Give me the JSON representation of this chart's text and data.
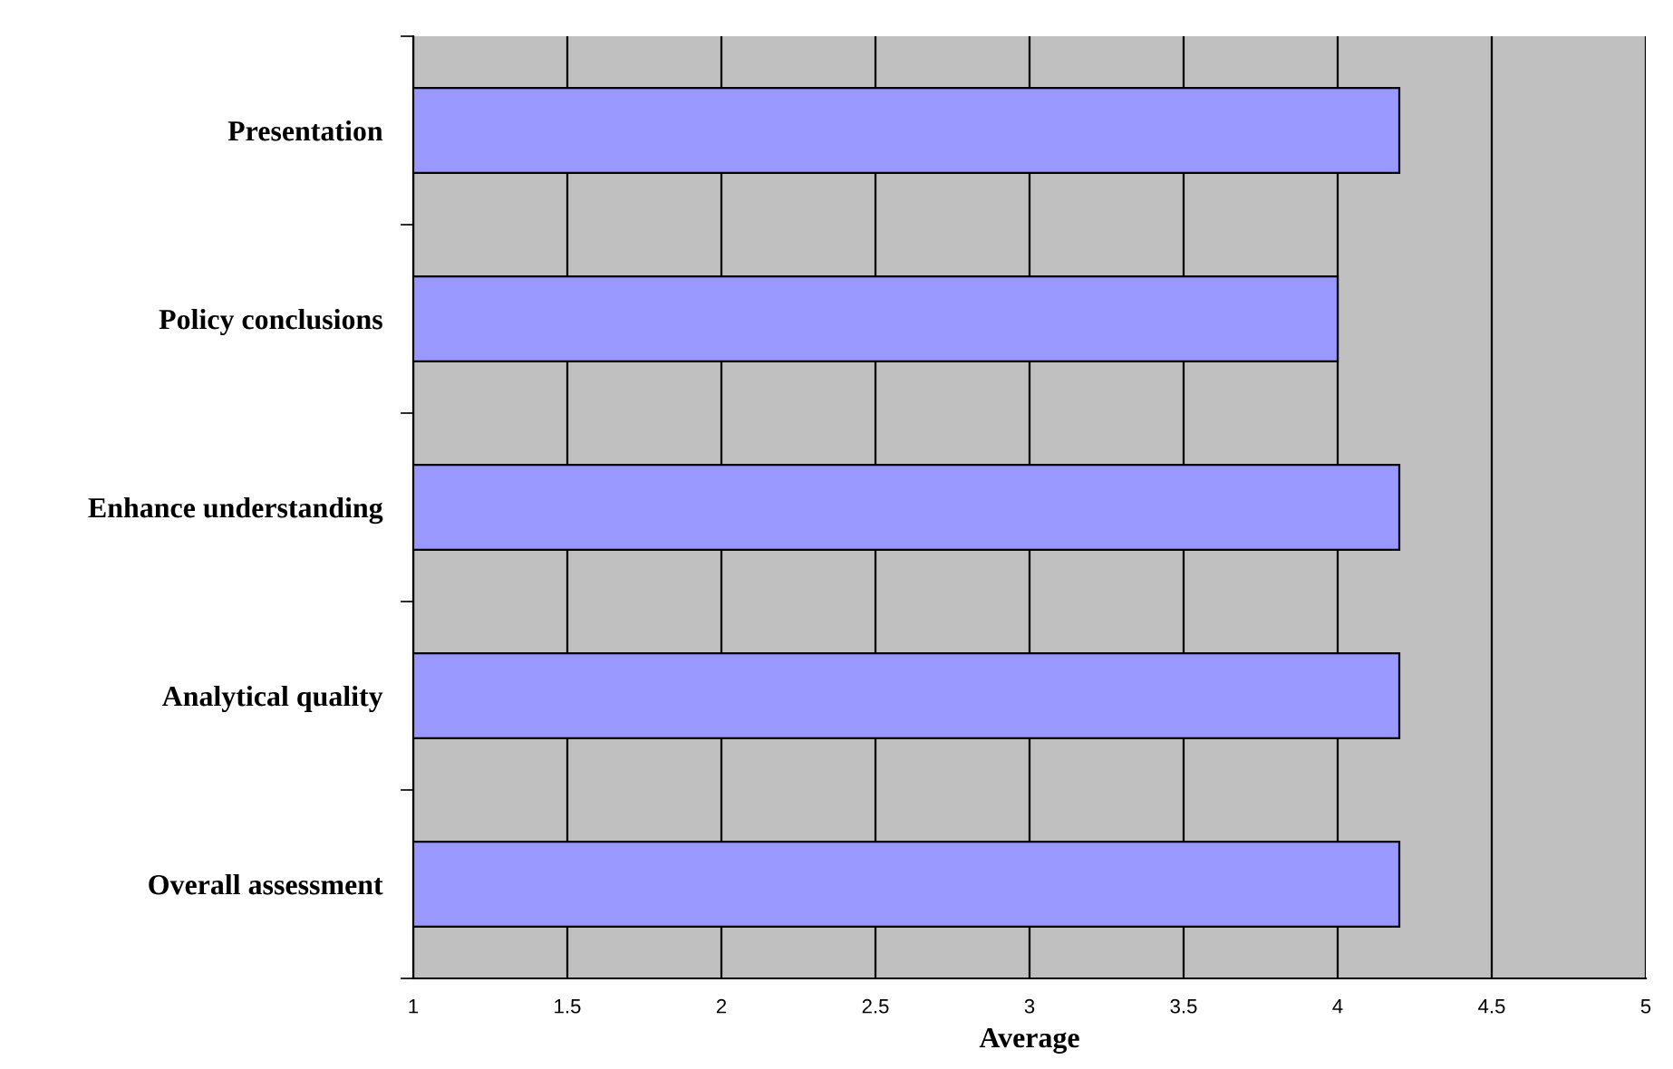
{
  "chart_data": {
    "type": "bar",
    "orientation": "horizontal",
    "xlabel": "Average",
    "categories": [
      "Presentation",
      "Policy conclusions",
      "Enhance understanding",
      "Analytical quality",
      "Overall assessment"
    ],
    "values": [
      4.2,
      4.0,
      4.2,
      4.2,
      4.2
    ],
    "color": "#9999ff",
    "xlim": [
      1,
      5
    ],
    "xticks": [
      1,
      1.5,
      2,
      2.5,
      3,
      3.5,
      4,
      4.5,
      5
    ],
    "grid": "x"
  }
}
